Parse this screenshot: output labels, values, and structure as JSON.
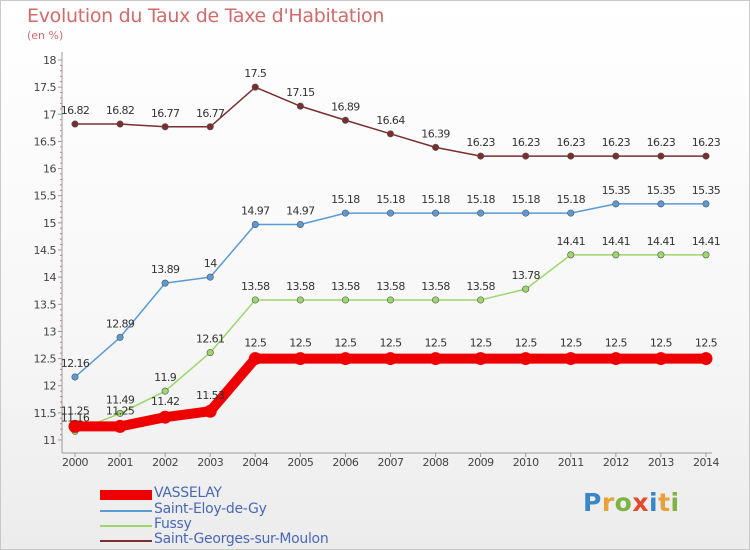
{
  "header": {
    "title": "Evolution du Taux de Taxe d'Habitation",
    "subtitle": "(en %)"
  },
  "colors": {
    "title": "#d06b6b",
    "axis": "#9a9a9a",
    "legend_text": "#4a68b8"
  },
  "logo": {
    "letters": [
      {
        "char": "P",
        "color": "#3a86c8"
      },
      {
        "char": "r",
        "color": "#e8a23c"
      },
      {
        "char": "o",
        "color": "#7fb342"
      },
      {
        "char": "x",
        "color": "#e04a2e"
      },
      {
        "char": "i",
        "color": "#3a86c8"
      },
      {
        "char": "t",
        "color": "#e8a23c"
      },
      {
        "char": "i",
        "color": "#7fb342"
      }
    ]
  },
  "chart_data": {
    "type": "line",
    "title": "Evolution du Taux de Taxe d'Habitation",
    "subtitle": "(en %)",
    "x": [
      "2000",
      "2001",
      "2002",
      "2003",
      "2004",
      "2005",
      "2006",
      "2007",
      "2008",
      "2009",
      "2010",
      "2011",
      "2012",
      "2013",
      "2014"
    ],
    "yticks": [
      "11",
      "11.5",
      "12",
      "12.5",
      "13",
      "13.5",
      "14",
      "14.5",
      "15",
      "15.5",
      "16",
      "16.5",
      "17",
      "17.5",
      "18"
    ],
    "ylim": [
      11,
      18
    ],
    "grid": false,
    "legend_position": "bottom-left",
    "series": [
      {
        "name": "VASSELAY",
        "color": "#ee0000",
        "style": "thick",
        "values": [
          11.25,
          11.25,
          11.42,
          11.53,
          12.5,
          12.5,
          12.5,
          12.5,
          12.5,
          12.5,
          12.5,
          12.5,
          12.5,
          12.5,
          12.5
        ],
        "labels": [
          "11.25",
          "11.25",
          "11.42",
          "11.53",
          "12.5",
          "12.5",
          "12.5",
          "12.5",
          "12.5",
          "12.5",
          "12.5",
          "12.5",
          "12.5",
          "12.5",
          "12.5"
        ]
      },
      {
        "name": "Saint-Eloy-de-Gy",
        "color": "#5b9bd5",
        "style": "thin",
        "values": [
          12.16,
          12.89,
          13.89,
          14,
          14.97,
          14.97,
          15.18,
          15.18,
          15.18,
          15.18,
          15.18,
          15.18,
          15.35,
          15.35,
          15.35
        ],
        "labels": [
          "12.16",
          "12.89",
          "13.89",
          "14",
          "14.97",
          "14.97",
          "15.18",
          "15.18",
          "15.18",
          "15.18",
          "15.18",
          "15.18",
          "15.35",
          "15.35",
          "15.35"
        ]
      },
      {
        "name": "Fussy",
        "color": "#9dd66b",
        "style": "thin",
        "values": [
          11.16,
          11.49,
          11.9,
          12.61,
          13.58,
          13.58,
          13.58,
          13.58,
          13.58,
          13.58,
          13.78,
          14.41,
          14.41,
          14.41,
          14.41
        ],
        "labels": [
          "11.16",
          "11.49",
          "11.9",
          "12.61",
          "13.58",
          "13.58",
          "13.58",
          "13.58",
          "13.58",
          "13.58",
          "13.78",
          "14.41",
          "14.41",
          "14.41",
          "14.41"
        ]
      },
      {
        "name": "Saint-Georges-sur-Moulon",
        "color": "#7a2e2e",
        "style": "thin",
        "values": [
          16.82,
          16.82,
          16.77,
          16.77,
          17.5,
          17.15,
          16.89,
          16.64,
          16.39,
          16.23,
          16.23,
          16.23,
          16.23,
          16.23,
          16.23
        ],
        "labels": [
          "16.82",
          "16.82",
          "16.77",
          "16.77",
          "17.5",
          "17.15",
          "16.89",
          "16.64",
          "16.39",
          "16.23",
          "16.23",
          "16.23",
          "16.23",
          "16.23",
          "16.23"
        ]
      }
    ]
  }
}
